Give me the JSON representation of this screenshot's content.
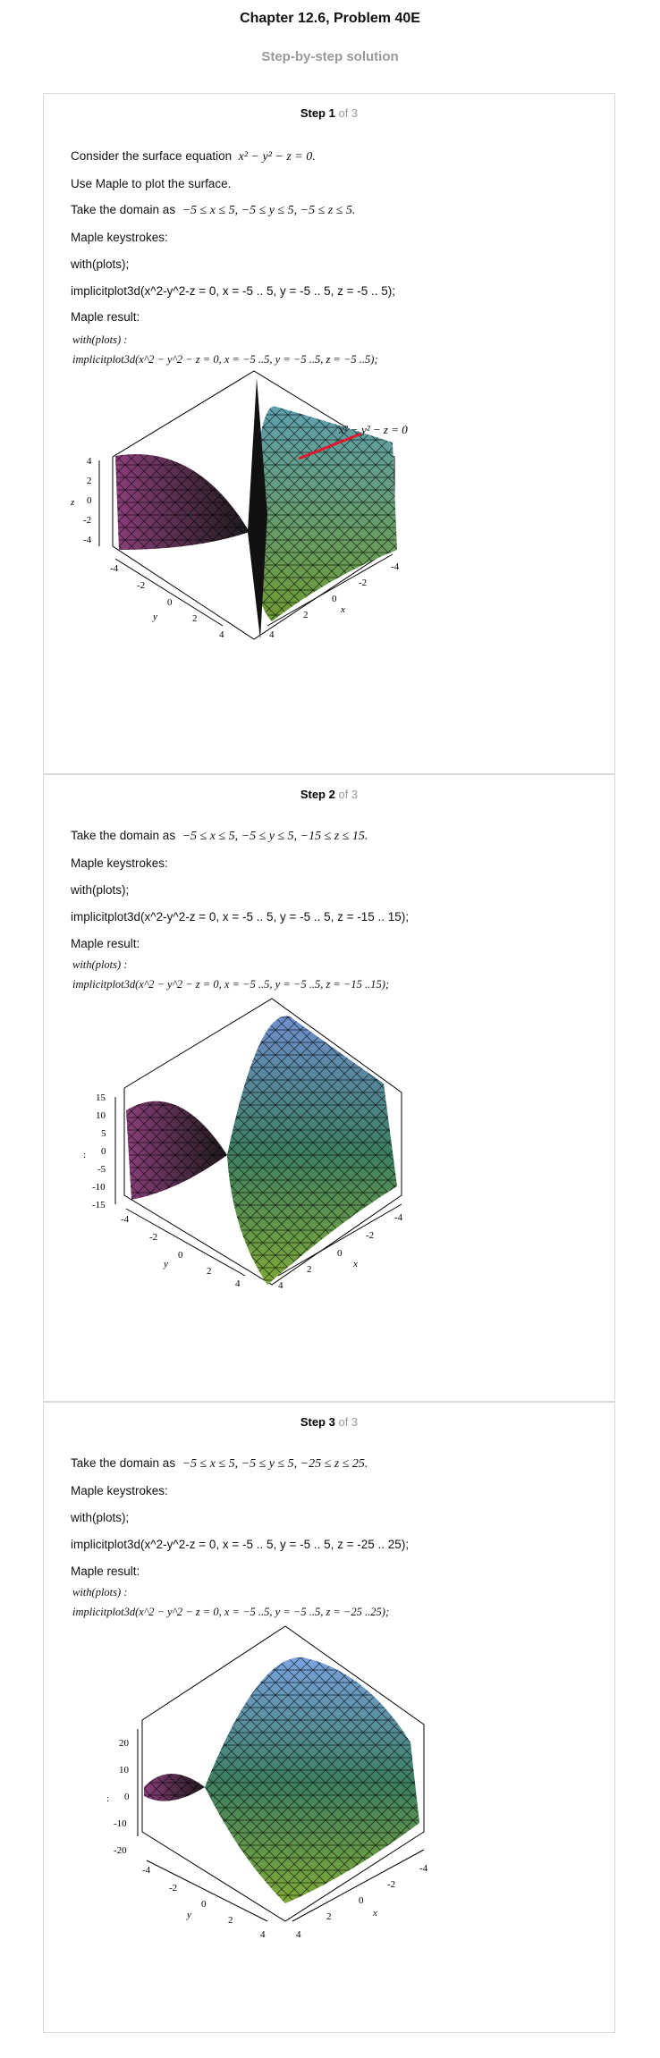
{
  "header": {
    "title": "Chapter 12.6, Problem 40E",
    "subtitle": "Step-by-step solution"
  },
  "steps": [
    {
      "num": "Step 1",
      "of": "of 3",
      "lines": [
        "Consider the surface equation",
        "Use Maple to plot the surface.",
        "Take the domain as",
        "Maple keystrokes:",
        "with(plots);",
        "implicitplot3d(x^2-y^2-z = 0, x = -5 .. 5, y = -5 .. 5, z = -5 .. 5);",
        "Maple result:"
      ],
      "eq": "x² − y² − z = 0.",
      "domain": "−5 ≤ x ≤ 5, −5 ≤ y ≤ 5, −5 ≤ z ≤ 5.",
      "maple1": "with(plots) :",
      "maple2": "implicitplot3d(x^2 − y^2 − z = 0, x = −5 ..5, y = −5 ..5, z = −5 ..5);",
      "plot_label": "x² − y² − z = 0",
      "zticks": [
        "4",
        "2",
        "0",
        "-2",
        "-4"
      ],
      "ylabel": "y",
      "xlabel": "x",
      "zlabel": "z"
    },
    {
      "num": "Step 2",
      "of": "of 3",
      "lines": [
        "Take the domain as",
        "Maple keystrokes:",
        "with(plots);",
        "implicitplot3d(x^2-y^2-z = 0, x = -5 .. 5, y = -5 .. 5, z = -15 .. 15);",
        "Maple result:"
      ],
      "domain": "−5 ≤ x ≤ 5, −5 ≤ y ≤ 5, −15 ≤ z ≤ 15.",
      "maple1": "with(plots) :",
      "maple2": "implicitplot3d(x^2 − y^2 − z = 0, x = −5 ..5, y = −5 ..5, z = −15 ..15);",
      "zticks": [
        "15",
        "10",
        "5",
        "0",
        "-5",
        "-10",
        "-15"
      ],
      "ylabel": "y",
      "xlabel": "x",
      "zlabel": ":"
    },
    {
      "num": "Step 3",
      "of": "of 3",
      "lines": [
        "Take the domain as",
        "Maple keystrokes:",
        "with(plots);",
        "implicitplot3d(x^2-y^2-z = 0, x = -5 .. 5, y = -5 .. 5, z = -25 .. 25);",
        "Maple result:"
      ],
      "domain": "−5 ≤ x ≤ 5, −5 ≤ y ≤ 5, −25 ≤ z ≤ 25.",
      "maple1": "with(plots) :",
      "maple2": "implicitplot3d(x^2 − y^2 − z = 0, x = −5 ..5, y = −5 ..5, z = −25 ..25);",
      "zticks": [
        "20",
        "10",
        "0",
        "-10",
        "-20"
      ],
      "ylabel": "y",
      "xlabel": "x",
      "zlabel": ":"
    }
  ],
  "axis_ticks": {
    "y": [
      "-4",
      "-2",
      "0",
      "2",
      "4"
    ],
    "x": [
      "4",
      "2",
      "0",
      "-2",
      "-4"
    ]
  },
  "colors": {
    "label_line": "#e0182d",
    "surface_left": "#8a3f7a",
    "surface_right": "#3d7f62",
    "surface_top": "#6f8fcf"
  }
}
